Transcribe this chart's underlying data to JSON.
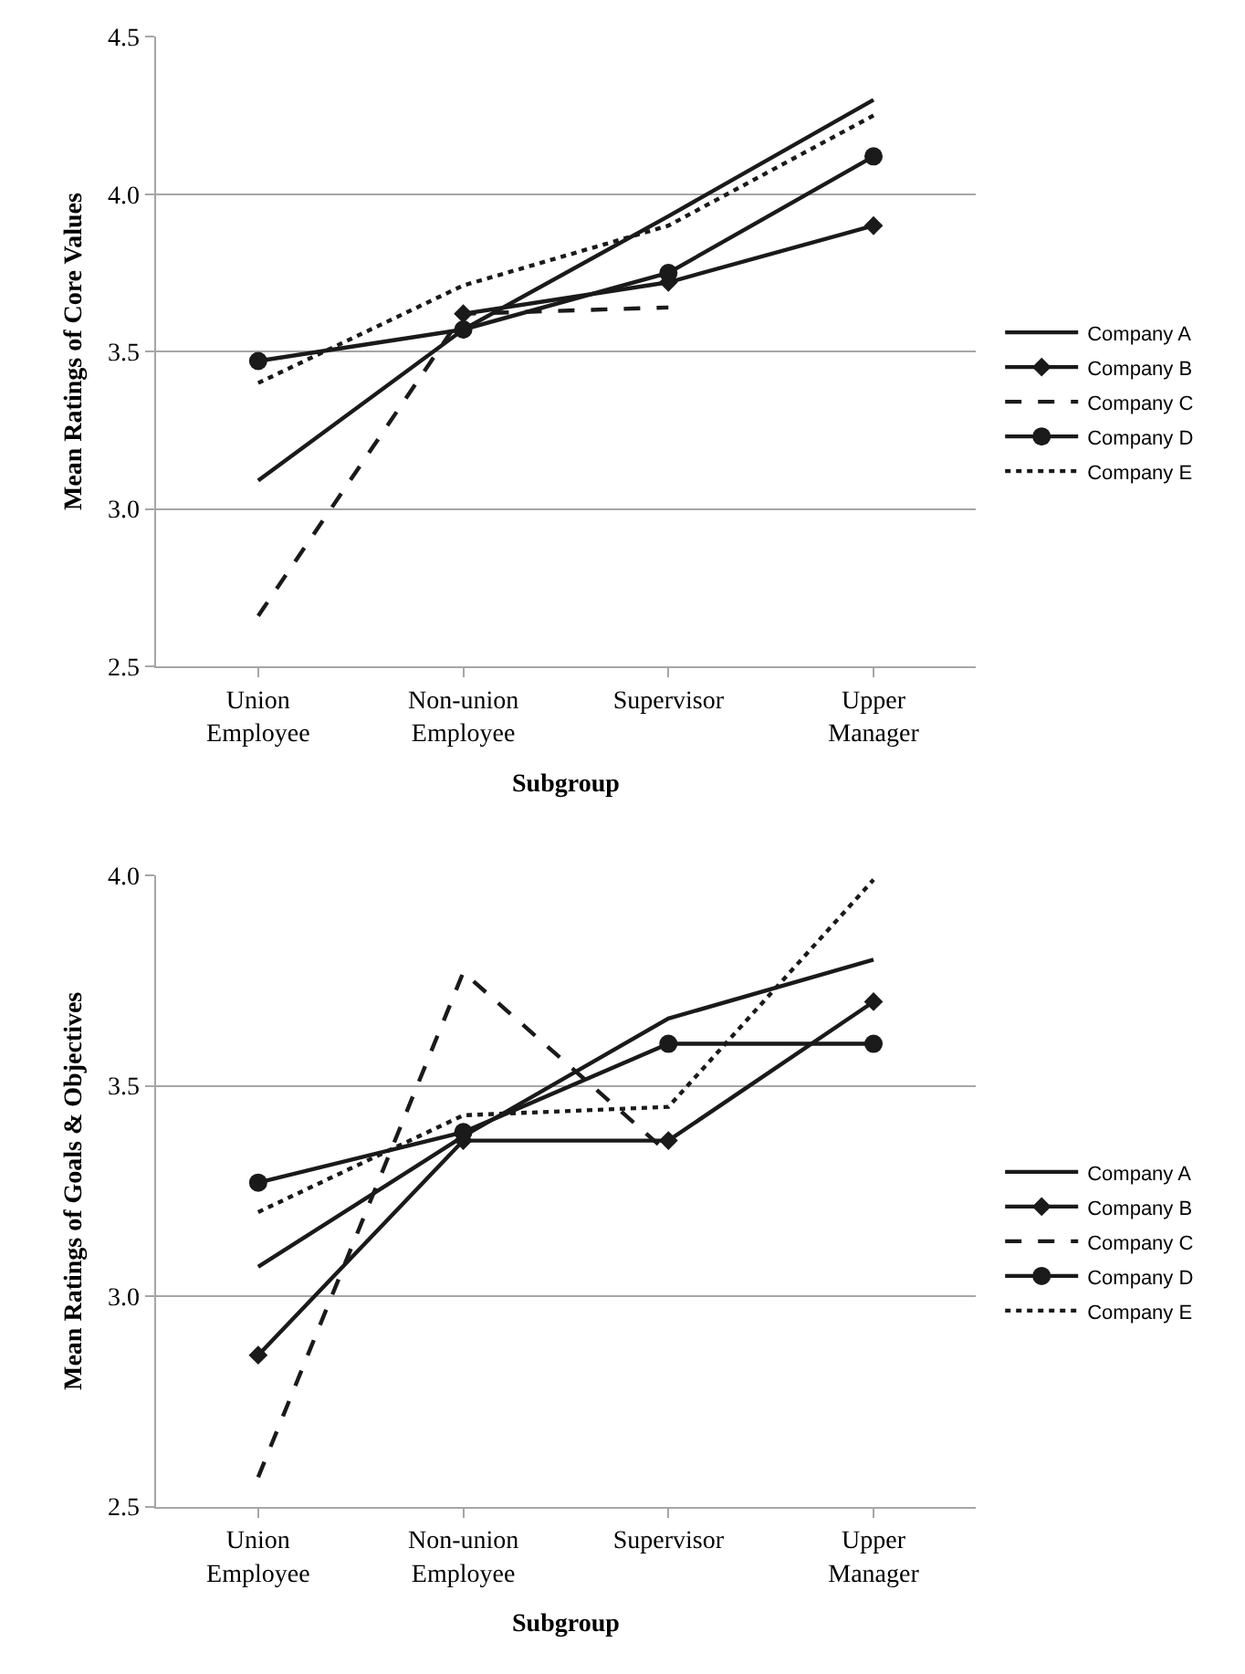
{
  "chart_data": [
    {
      "type": "line",
      "xlabel": "Subgroup",
      "ylabel": "Mean Ratings of Core Values",
      "categories": [
        "Union Employee",
        "Non-union Employee",
        "Supervisor",
        "Upper Manager"
      ],
      "ylim": [
        2.5,
        4.5
      ],
      "yticks": [
        {
          "value": 2.5,
          "label": "2.5"
        },
        {
          "value": 3.0,
          "label": "3.0"
        },
        {
          "value": 3.5,
          "label": "3.5"
        },
        {
          "value": 4.0,
          "label": "4.0"
        },
        {
          "value": 4.5,
          "label": "4.5"
        }
      ],
      "grid": "y",
      "legend": "right",
      "series": [
        {
          "name": "Company A",
          "color": "#1a1a1a",
          "line_style": "solid",
          "marker": "none",
          "values": [
            3.09,
            3.57,
            3.93,
            4.3
          ]
        },
        {
          "name": "Company B",
          "color": "#1a1a1a",
          "line_style": "solid",
          "marker": "diamond",
          "values": [
            null,
            3.62,
            3.72,
            3.9
          ]
        },
        {
          "name": "Company C",
          "color": "#1a1a1a",
          "line_style": "dashed",
          "marker": "none",
          "values": [
            2.66,
            3.62,
            3.64,
            null
          ]
        },
        {
          "name": "Company D",
          "color": "#1a1a1a",
          "line_style": "solid",
          "marker": "circle",
          "values": [
            3.47,
            3.57,
            3.75,
            4.12
          ]
        },
        {
          "name": "Company E",
          "color": "#1a1a1a",
          "line_style": "dotted",
          "marker": "none",
          "values": [
            3.4,
            3.71,
            3.9,
            4.25
          ]
        }
      ]
    },
    {
      "type": "line",
      "xlabel": "Subgroup",
      "ylabel": "Mean Ratings of Goals & Objectives",
      "categories": [
        "Union Employee",
        "Non-union Employee",
        "Supervisor",
        "Upper Manager"
      ],
      "ylim": [
        2.5,
        4.0
      ],
      "yticks": [
        {
          "value": 2.5,
          "label": "2.5"
        },
        {
          "value": 3.0,
          "label": "3.0"
        },
        {
          "value": 3.5,
          "label": "3.5"
        },
        {
          "value": 4.0,
          "label": "4.0"
        }
      ],
      "grid": "y",
      "legend": "right",
      "series": [
        {
          "name": "Company A",
          "color": "#1a1a1a",
          "line_style": "solid",
          "marker": "none",
          "values": [
            3.07,
            3.38,
            3.66,
            3.8
          ]
        },
        {
          "name": "Company B",
          "color": "#1a1a1a",
          "line_style": "solid",
          "marker": "diamond",
          "values": [
            2.86,
            3.37,
            3.37,
            3.7
          ]
        },
        {
          "name": "Company C",
          "color": "#1a1a1a",
          "line_style": "dashed",
          "marker": "none",
          "values": [
            2.57,
            3.77,
            3.34,
            null
          ]
        },
        {
          "name": "Company D",
          "color": "#1a1a1a",
          "line_style": "solid",
          "marker": "circle",
          "values": [
            3.27,
            3.39,
            3.6,
            3.6
          ]
        },
        {
          "name": "Company E",
          "color": "#1a1a1a",
          "line_style": "dotted",
          "marker": "none",
          "values": [
            3.2,
            3.43,
            3.45,
            3.99
          ]
        }
      ]
    }
  ]
}
